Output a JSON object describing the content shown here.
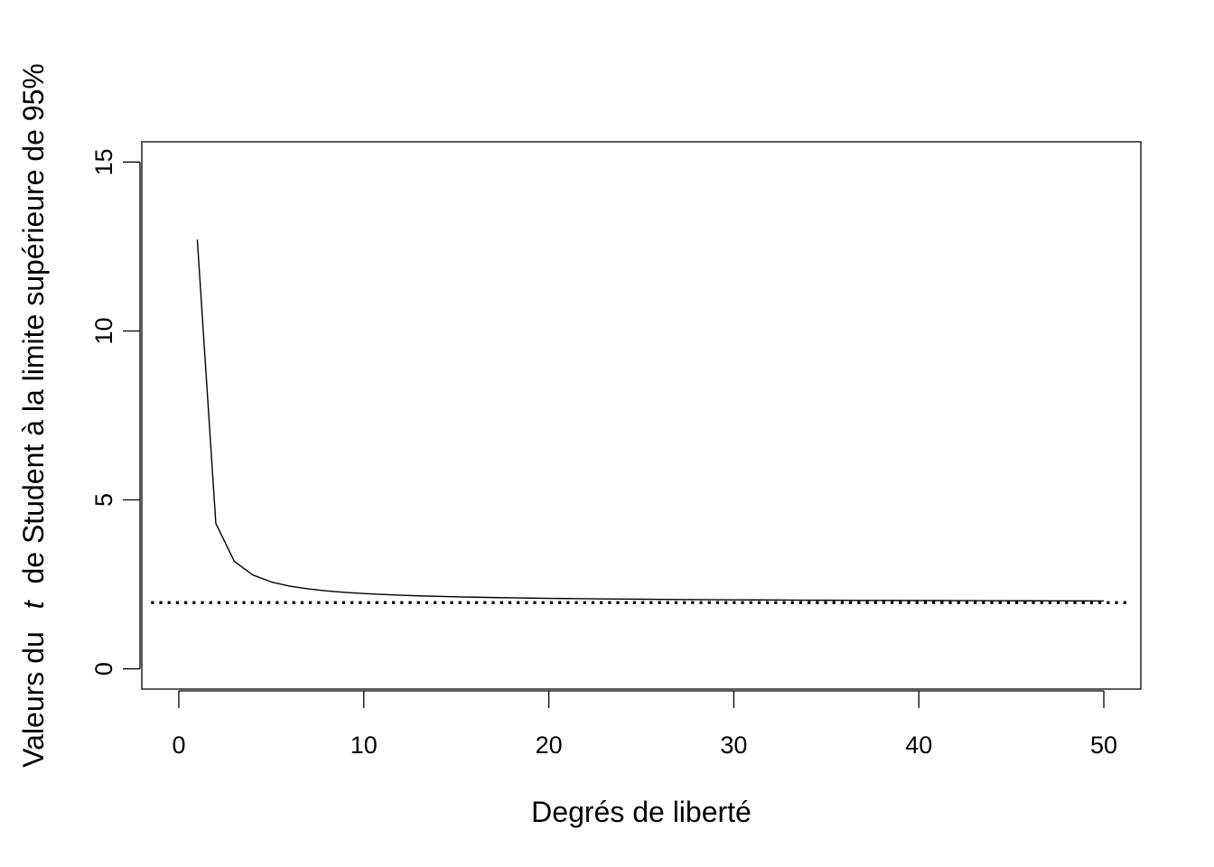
{
  "chart_data": {
    "type": "line",
    "xlabel": "Degrés de liberté",
    "ylabel": {
      "before": "Valeurs du",
      "italic": "t",
      "after": "de Student à la limite supérieure de 95%"
    },
    "xlim": [
      -2,
      52
    ],
    "ylim": [
      -0.6,
      15.6
    ],
    "x_ticks": [
      0,
      10,
      20,
      30,
      40,
      50
    ],
    "y_ticks": [
      0,
      5,
      10,
      15
    ],
    "grid": false,
    "legend": "none",
    "series": [
      {
        "style": "solid",
        "color": "#000000",
        "x": [
          1,
          2,
          3,
          4,
          5,
          6,
          7,
          8,
          9,
          10,
          11,
          12,
          13,
          14,
          15,
          16,
          17,
          18,
          19,
          20,
          21,
          22,
          23,
          24,
          25,
          26,
          27,
          28,
          29,
          30,
          31,
          32,
          33,
          34,
          35,
          36,
          37,
          38,
          39,
          40,
          41,
          42,
          43,
          44,
          45,
          46,
          47,
          48,
          49,
          50
        ],
        "y": [
          12.706,
          4.303,
          3.182,
          2.776,
          2.571,
          2.447,
          2.365,
          2.306,
          2.262,
          2.228,
          2.201,
          2.179,
          2.16,
          2.145,
          2.131,
          2.12,
          2.11,
          2.101,
          2.093,
          2.086,
          2.08,
          2.074,
          2.069,
          2.064,
          2.06,
          2.056,
          2.052,
          2.048,
          2.045,
          2.042,
          2.04,
          2.037,
          2.035,
          2.032,
          2.03,
          2.028,
          2.026,
          2.024,
          2.023,
          2.021,
          2.02,
          2.018,
          2.017,
          2.015,
          2.014,
          2.013,
          2.012,
          2.011,
          2.01,
          2.009
        ]
      },
      {
        "style": "dotted",
        "color": "#000000",
        "x": [
          -1.5,
          51.5
        ],
        "y": [
          1.96,
          1.96
        ]
      }
    ]
  }
}
